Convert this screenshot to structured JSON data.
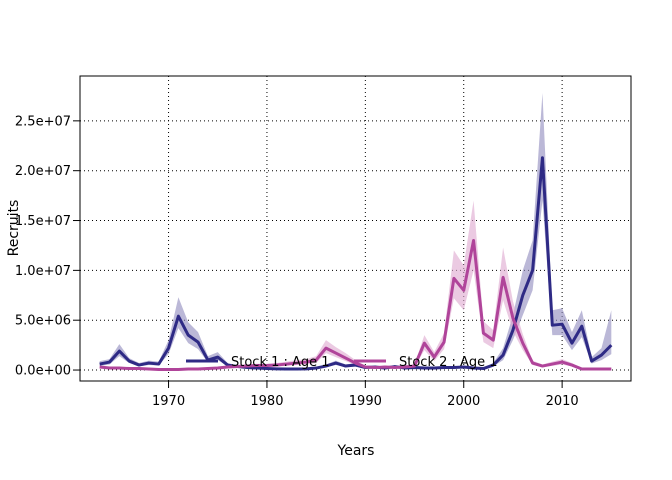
{
  "chart_data": {
    "type": "line",
    "title": "",
    "xlabel": "Years",
    "ylabel": "Recruits",
    "xlim": [
      1961,
      2017
    ],
    "ylim": [
      -1100000,
      29500000
    ],
    "x_ticks": [
      1970,
      1980,
      1990,
      2000,
      2010
    ],
    "y_ticks": [
      0,
      5000000,
      10000000,
      15000000,
      20000000,
      25000000
    ],
    "y_tick_labels": [
      "0.0e+00",
      "5.0e+06",
      "1.0e+07",
      "1.5e+07",
      "2.0e+07",
      "2.5e+07"
    ],
    "x_tick_labels": [
      "1970",
      "1980",
      "1990",
      "2000",
      "2010"
    ],
    "grid": true,
    "legend": "bottom-center",
    "series": [
      {
        "name": "Stock 1 : Age 1",
        "color": "#2e2a85",
        "band_color": "#8d88bd",
        "x": [
          1963,
          1964,
          1965,
          1966,
          1967,
          1968,
          1969,
          1970,
          1971,
          1972,
          1973,
          1974,
          1975,
          1976,
          1977,
          1978,
          1979,
          1980,
          1981,
          1982,
          1983,
          1984,
          1985,
          1986,
          1987,
          1988,
          1989,
          1990,
          1991,
          1992,
          1993,
          1994,
          1995,
          1996,
          1997,
          1998,
          1999,
          2000,
          2001,
          2002,
          2003,
          2004,
          2005,
          2006,
          2007,
          2008,
          2009,
          2010,
          2011,
          2012,
          2013,
          2014,
          2015
        ],
        "values": [
          600000,
          800000,
          1900000,
          900000,
          500000,
          700000,
          600000,
          2200000,
          5400000,
          3500000,
          2800000,
          1000000,
          1300000,
          500000,
          350000,
          250000,
          200000,
          150000,
          120000,
          100000,
          100000,
          120000,
          200000,
          400000,
          700000,
          400000,
          500000,
          250000,
          300000,
          200000,
          350000,
          200000,
          250000,
          200000,
          200000,
          250000,
          250000,
          300000,
          200000,
          150000,
          500000,
          1500000,
          4000000,
          7500000,
          10000000,
          21300000,
          4500000,
          4600000,
          2700000,
          4400000,
          900000,
          1500000,
          2500000
        ],
        "lower": [
          400000,
          550000,
          1400000,
          700000,
          380000,
          500000,
          450000,
          1600000,
          4200000,
          2700000,
          2100000,
          750000,
          1000000,
          380000,
          260000,
          180000,
          140000,
          100000,
          80000,
          70000,
          70000,
          80000,
          140000,
          280000,
          500000,
          280000,
          350000,
          170000,
          200000,
          140000,
          250000,
          140000,
          170000,
          140000,
          140000,
          170000,
          170000,
          200000,
          140000,
          100000,
          350000,
          1000000,
          3000000,
          5500000,
          8000000,
          17000000,
          3500000,
          3500000,
          2000000,
          3300000,
          650000,
          1000000,
          1600000
        ],
        "upper": [
          900000,
          1100000,
          2600000,
          1200000,
          700000,
          950000,
          850000,
          3000000,
          7300000,
          4800000,
          3800000,
          1400000,
          1800000,
          700000,
          480000,
          350000,
          280000,
          220000,
          180000,
          150000,
          150000,
          170000,
          280000,
          550000,
          950000,
          560000,
          700000,
          350000,
          420000,
          280000,
          480000,
          280000,
          350000,
          280000,
          280000,
          350000,
          350000,
          420000,
          280000,
          220000,
          700000,
          2200000,
          5500000,
          10000000,
          13000000,
          27800000,
          6000000,
          6200000,
          3800000,
          6000000,
          1300000,
          2200000,
          6000000
        ]
      },
      {
        "name": "Stock 2 : Age 1",
        "color": "#b0449a",
        "band_color": "#dea7cf",
        "x": [
          1963,
          1964,
          1965,
          1966,
          1967,
          1968,
          1969,
          1970,
          1971,
          1972,
          1973,
          1974,
          1975,
          1976,
          1977,
          1978,
          1979,
          1980,
          1981,
          1982,
          1983,
          1984,
          1985,
          1986,
          1987,
          1988,
          1989,
          1990,
          1991,
          1992,
          1993,
          1994,
          1995,
          1996,
          1997,
          1998,
          1999,
          2000,
          2001,
          2002,
          2003,
          2004,
          2005,
          2006,
          2007,
          2008,
          2009,
          2010,
          2011,
          2012,
          2013,
          2014,
          2015
        ],
        "values": [
          300000,
          200000,
          200000,
          150000,
          150000,
          100000,
          50000,
          50000,
          50000,
          100000,
          100000,
          150000,
          200000,
          300000,
          350000,
          400000,
          450000,
          450000,
          500000,
          600000,
          700000,
          800000,
          1000000,
          2200000,
          1700000,
          1200000,
          700000,
          300000,
          250000,
          300000,
          250000,
          300000,
          400000,
          2700000,
          1300000,
          2800000,
          9200000,
          8000000,
          13000000,
          3700000,
          3000000,
          9300000,
          5200000,
          2700000,
          700000,
          400000,
          600000,
          800000,
          500000,
          100000,
          100000,
          100000,
          100000
        ],
        "lower": [
          200000,
          140000,
          140000,
          100000,
          100000,
          70000,
          30000,
          30000,
          30000,
          70000,
          70000,
          100000,
          140000,
          200000,
          250000,
          280000,
          320000,
          320000,
          350000,
          420000,
          500000,
          560000,
          700000,
          1700000,
          1300000,
          900000,
          500000,
          200000,
          170000,
          200000,
          170000,
          200000,
          280000,
          2000000,
          900000,
          2100000,
          7200000,
          6000000,
          10000000,
          2800000,
          2200000,
          7000000,
          3900000,
          2000000,
          500000,
          280000,
          420000,
          560000,
          350000,
          70000,
          70000,
          70000,
          70000
        ],
        "upper": [
          420000,
          280000,
          280000,
          220000,
          220000,
          150000,
          80000,
          80000,
          80000,
          150000,
          150000,
          220000,
          280000,
          420000,
          500000,
          560000,
          630000,
          630000,
          700000,
          850000,
          1000000,
          1100000,
          1400000,
          3000000,
          2300000,
          1700000,
          1000000,
          450000,
          370000,
          450000,
          370000,
          450000,
          560000,
          3500000,
          1800000,
          3700000,
          12000000,
          10500000,
          17000000,
          4900000,
          4000000,
          12300000,
          6900000,
          3600000,
          950000,
          560000,
          850000,
          1100000,
          700000,
          150000,
          150000,
          150000,
          150000
        ]
      }
    ]
  }
}
